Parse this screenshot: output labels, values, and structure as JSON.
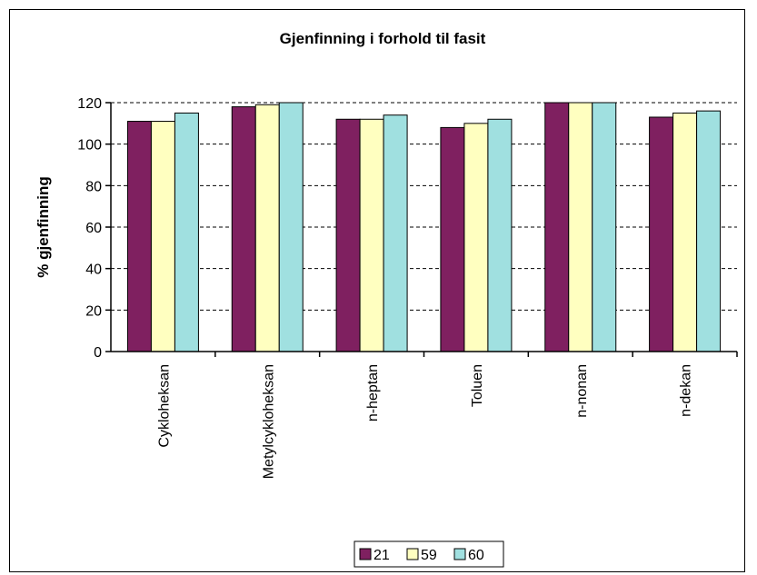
{
  "chart_data": {
    "type": "bar",
    "title": "Gjenfinning i forhold til fasit",
    "ylabel": "% gjenfinning",
    "xlabel": "",
    "ylim": [
      0,
      120
    ],
    "yticks": [
      "0",
      "20",
      "40",
      "60",
      "80",
      "100",
      "120"
    ],
    "grid": true,
    "legend_position": "bottom",
    "categories": [
      "Cykloheksan",
      "Metylcykloheksan",
      "n-heptan",
      "Toluen",
      "n-nonan",
      "n-dekan"
    ],
    "series": [
      {
        "name": "21",
        "color": "#7f2060",
        "values": [
          111,
          118,
          112,
          108,
          125,
          113
        ]
      },
      {
        "name": "59",
        "color": "#ffffc0",
        "values": [
          111,
          119,
          112,
          110,
          125,
          115
        ]
      },
      {
        "name": "60",
        "color": "#a0e0e0",
        "values": [
          115,
          125,
          114,
          112,
          125,
          116
        ]
      }
    ]
  }
}
